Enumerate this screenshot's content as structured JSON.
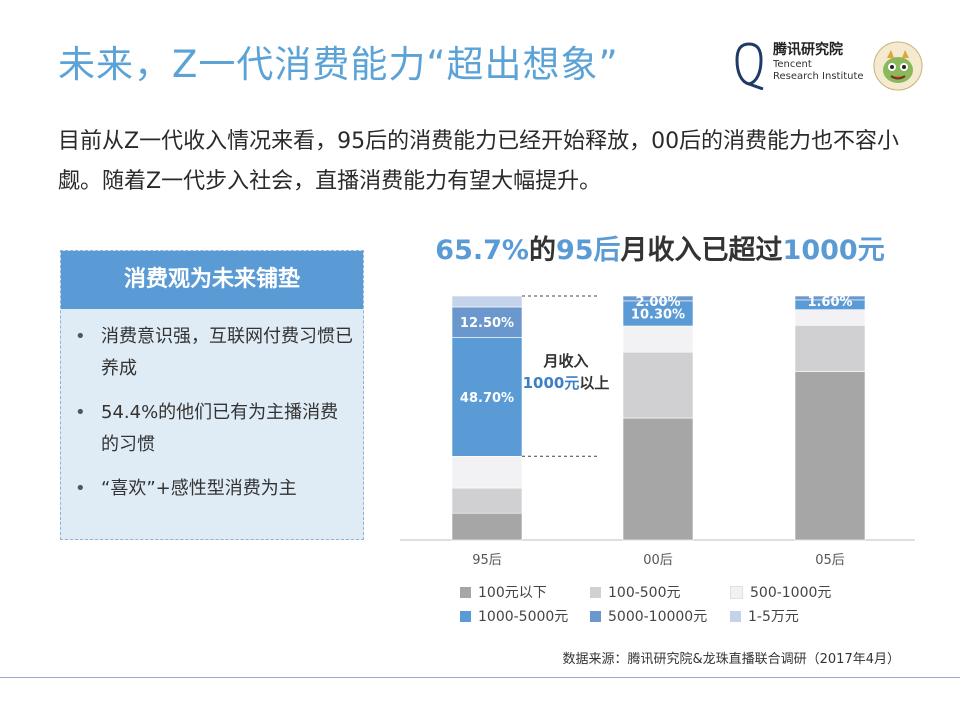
{
  "header": {
    "title": "未来，Z一代消费能力“超出想象”",
    "logo_cn": "腾讯研究院",
    "logo_en_line1": "Tencent",
    "logo_en_line2": "Research Institute"
  },
  "intro": "目前从Z一代收入情况来看，95后的消费能力已经开始释放，00后的消费能力也不容小觑。随着Z一代步入社会，直播消费能力有望大幅提升。",
  "chart_heading": {
    "part1": "65.7%",
    "part2": "的",
    "part3": "95后",
    "part4": "月收入已超过",
    "part5": "1000元"
  },
  "sidebox": {
    "title": "消费观为未来铺垫",
    "items": [
      "消费意识强，互联网付费习惯已养成",
      "54.4%的他们已有为主播消费的习惯",
      "“喜欢”+感性型消费为主"
    ]
  },
  "chart_data": {
    "type": "bar",
    "stacked": true,
    "categories": [
      "95后",
      "00后",
      "05后"
    ],
    "ylim": [
      0,
      100
    ],
    "series": [
      {
        "name": "100元以下",
        "color": "#a6a6a6",
        "values": [
          11.0,
          50.0,
          69.0
        ]
      },
      {
        "name": "100-500元",
        "color": "#d0d0d3",
        "values": [
          10.3,
          27.0,
          19.0
        ]
      },
      {
        "name": "500-1000元",
        "color": "#f2f2f4",
        "values": [
          13.0,
          10.7,
          6.4
        ]
      },
      {
        "name": "1000-5000元",
        "color": "#5b9bd5",
        "values": [
          48.7,
          10.3,
          4.0
        ]
      },
      {
        "name": "5000-10000元",
        "color": "#6a98cc",
        "values": [
          12.5,
          2.0,
          1.6
        ]
      },
      {
        "name": "1-5万元",
        "color": "#c4d3ea",
        "values": [
          4.5,
          0.0,
          0.0
        ]
      }
    ],
    "data_labels": [
      {
        "category": "95后",
        "series": "5000-10000元",
        "text": "12.50%"
      },
      {
        "category": "95后",
        "series": "1000-5000元",
        "text": "48.70%"
      },
      {
        "category": "00后",
        "series": "5000-10000元",
        "text": "2.00%"
      },
      {
        "category": "00后",
        "series": "1000-5000元",
        "text": "10.30%"
      },
      {
        "category": "05后",
        "series": "5000-10000元",
        "text": "1.60%"
      }
    ],
    "annotation": {
      "line1": "月收入",
      "line2_value": "1000元",
      "line2_suffix": "以上"
    }
  },
  "source": "数据来源：腾讯研究院&龙珠直播联合调研（2017年4月）"
}
